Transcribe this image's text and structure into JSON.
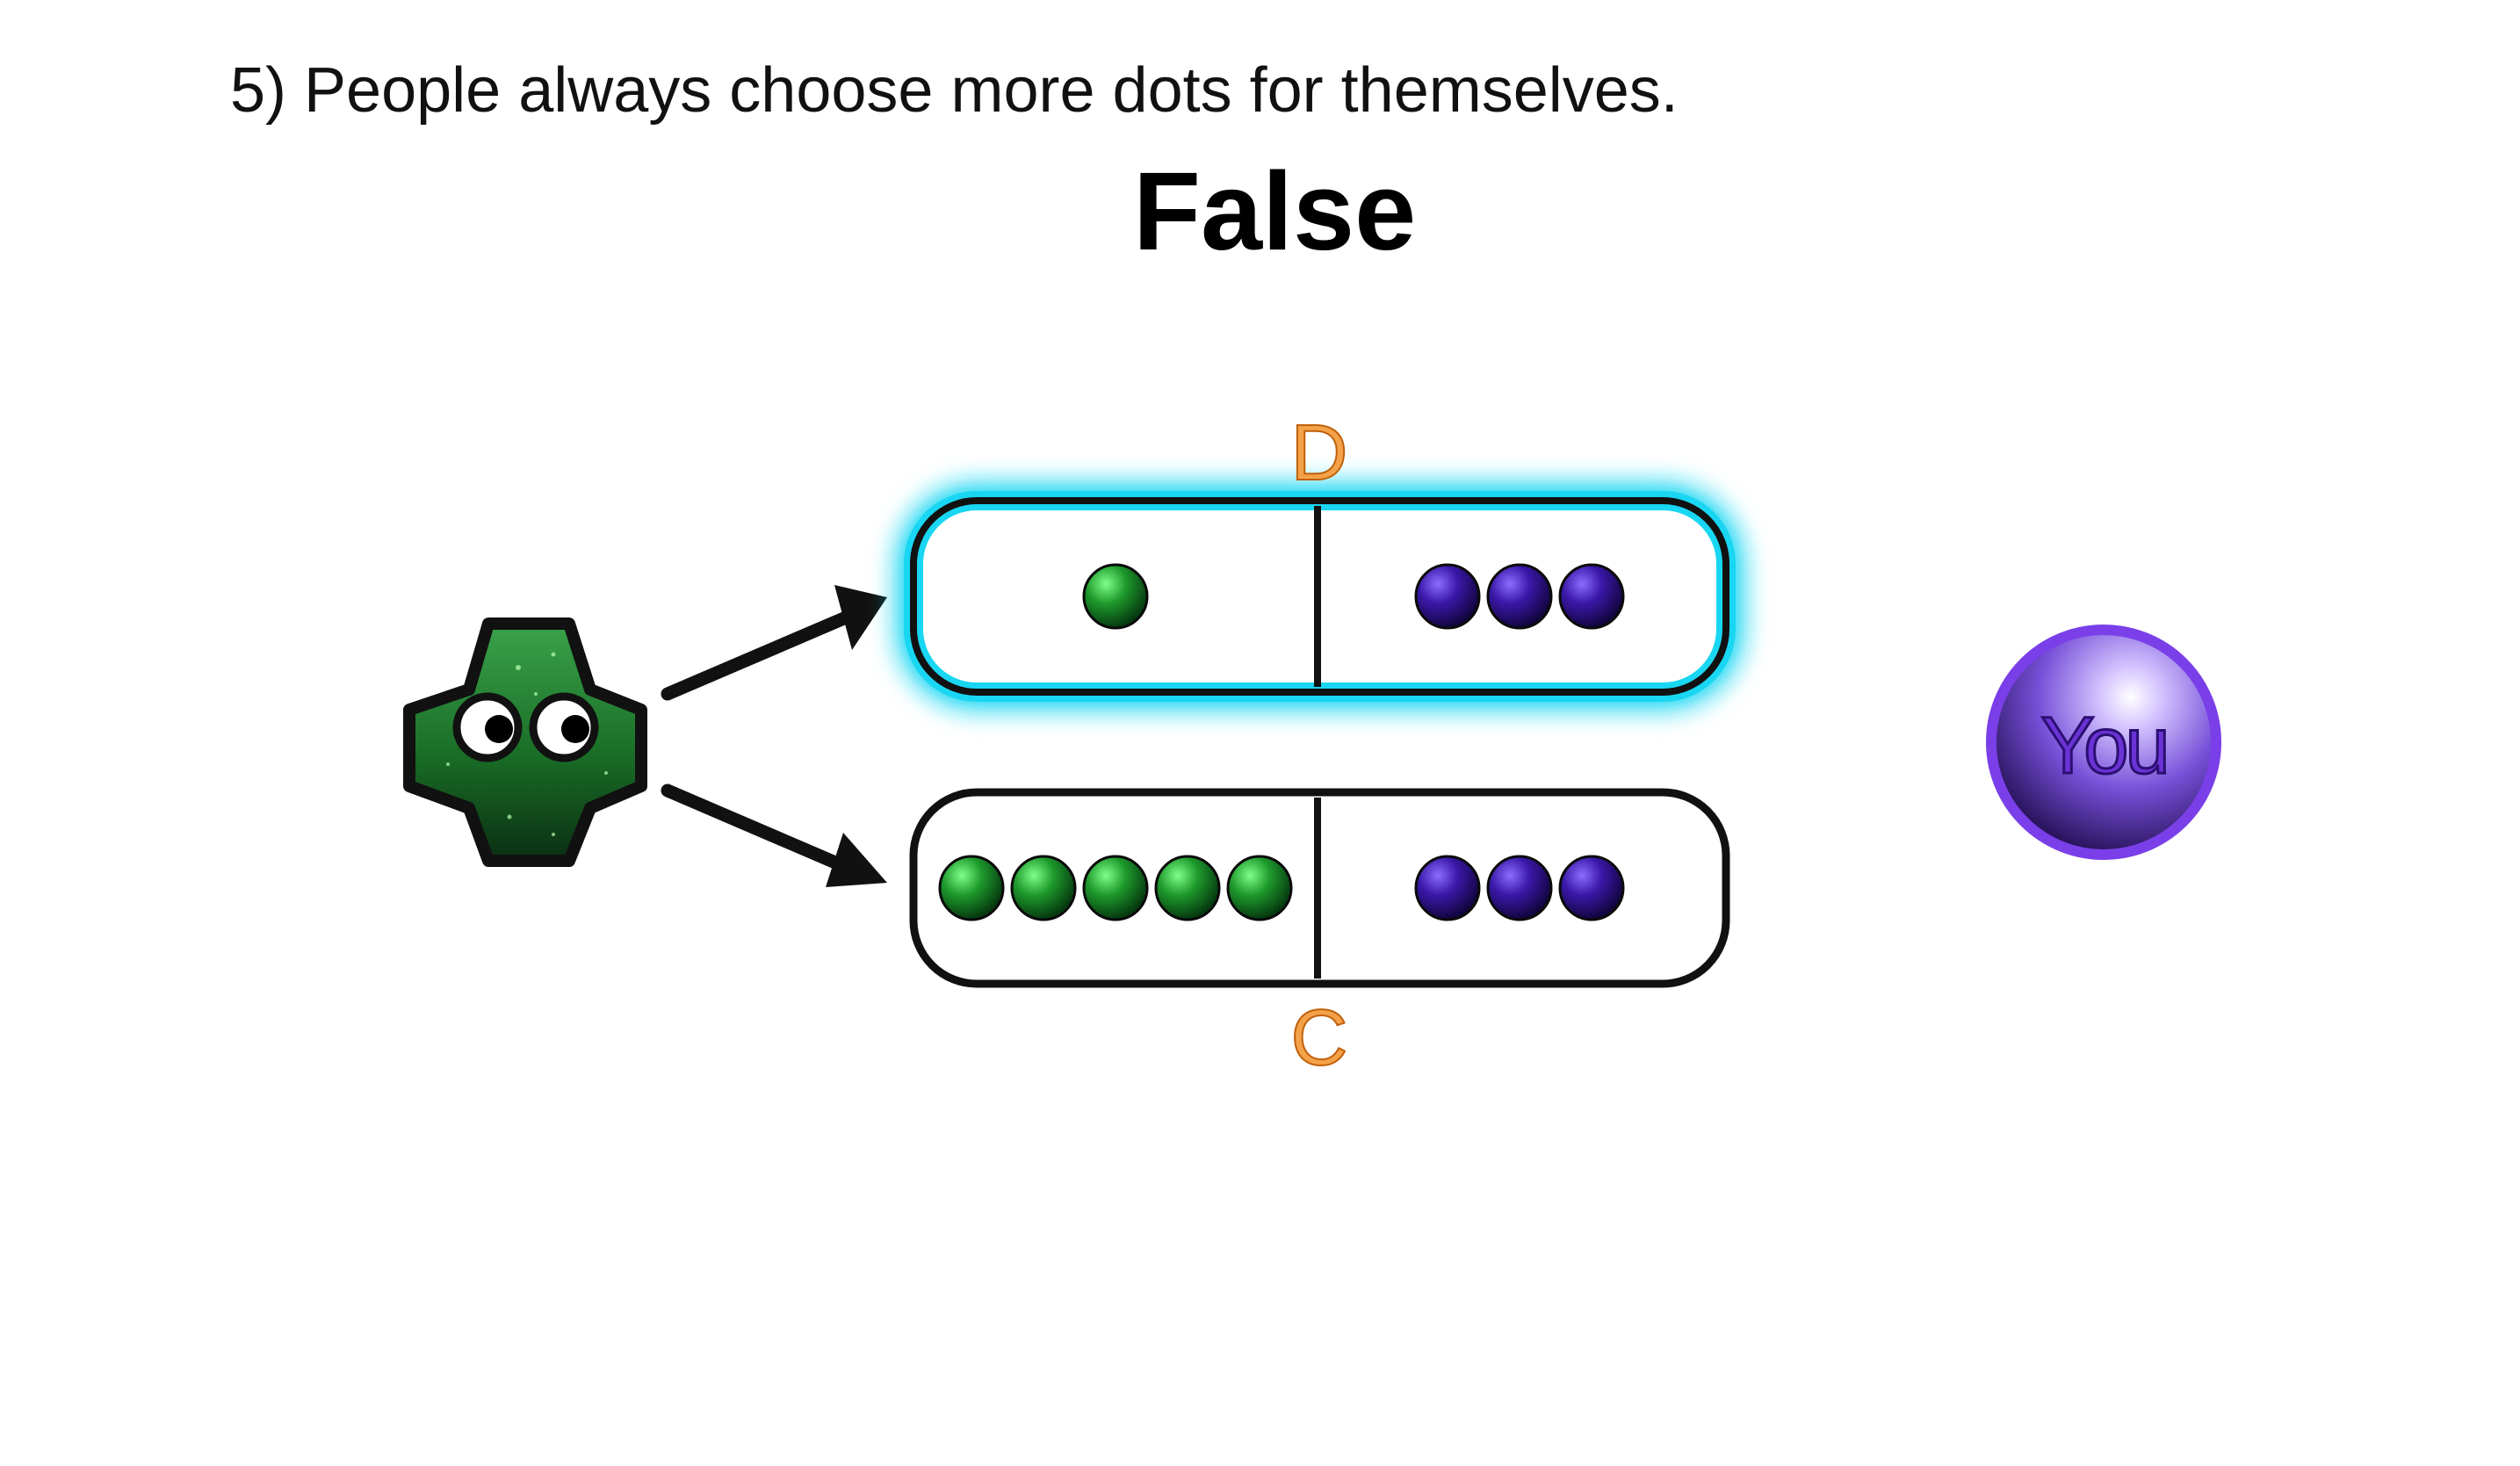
{
  "slide": {
    "question": "5) People always choose more dots for themselves.",
    "answer": "False"
  },
  "options": [
    {
      "label": "D",
      "highlighted": true,
      "other_dots": 1,
      "you_dots": 3
    },
    {
      "label": "C",
      "highlighted": false,
      "other_dots": 5,
      "you_dots": 3
    }
  ],
  "player": {
    "label": "You",
    "color": "#7b3fe0"
  },
  "colors": {
    "highlight_glow": "#19d6f2",
    "label_orange": "#e07a10",
    "green_dot": "#1f9a2e",
    "purple_dot": "#4a1aa8"
  },
  "icons": {
    "chooser": "green-cross-character-icon",
    "arrow": "arrow-icon",
    "you": "you-orb-icon"
  }
}
